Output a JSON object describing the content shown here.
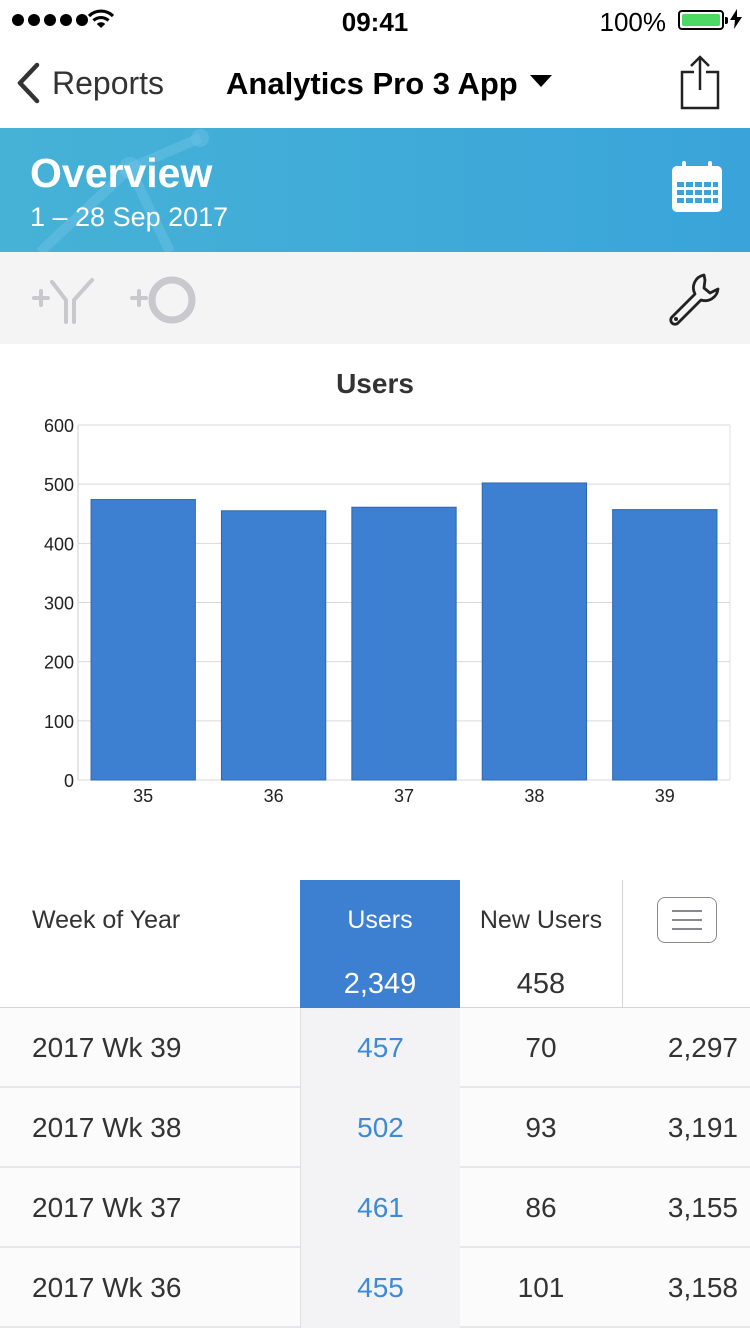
{
  "status": {
    "time": "09:41",
    "battery": "100%"
  },
  "nav": {
    "back_label": "Reports",
    "title": "Analytics Pro 3 App"
  },
  "header": {
    "title": "Overview",
    "date_range": "1 – 28 Sep 2017"
  },
  "icons": {
    "back": "chevron-left-icon",
    "share": "share-icon",
    "calendar": "calendar-icon",
    "segment": "add-segment-icon",
    "metric": "add-metric-icon",
    "settings": "wrench-icon",
    "menu": "menu-icon"
  },
  "colors": {
    "header": "#3aa4da",
    "bar": "#3d7fd1",
    "accent_text": "#3d8ad6"
  },
  "chart_data": {
    "type": "bar",
    "title": "Users",
    "categories": [
      "35",
      "36",
      "37",
      "38",
      "39"
    ],
    "values": [
      474,
      455,
      461,
      502,
      457
    ],
    "xlabel": "",
    "ylabel": "",
    "ylim": [
      0,
      600
    ],
    "yticks": [
      "0",
      "100",
      "200",
      "300",
      "400",
      "500",
      "600"
    ],
    "grid": true,
    "legend": "none"
  },
  "table": {
    "dimension_header": "Week of Year",
    "columns": [
      {
        "label": "Users",
        "total": "2,349"
      },
      {
        "label": "New Users",
        "total": "458"
      }
    ],
    "rows": [
      {
        "dim": "2017 Wk 39",
        "users": "457",
        "new_users": "70",
        "extra": "2,297"
      },
      {
        "dim": "2017 Wk 38",
        "users": "502",
        "new_users": "93",
        "extra": "3,191"
      },
      {
        "dim": "2017 Wk 37",
        "users": "461",
        "new_users": "86",
        "extra": "3,155"
      },
      {
        "dim": "2017 Wk 36",
        "users": "455",
        "new_users": "101",
        "extra": "3,158"
      }
    ]
  }
}
